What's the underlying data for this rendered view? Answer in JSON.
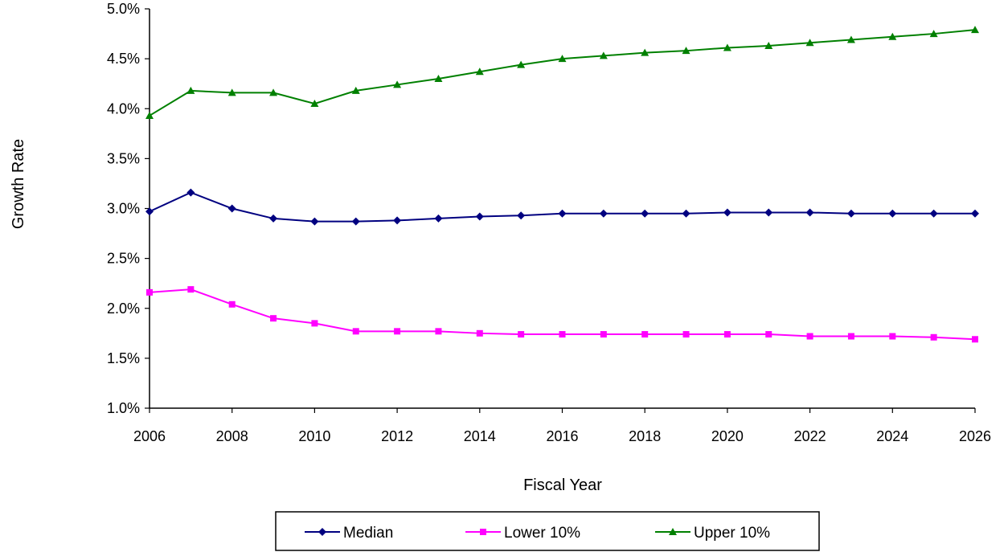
{
  "chart_data": {
    "type": "line",
    "title": "",
    "xlabel": "Fiscal Year",
    "ylabel": "Growth Rate",
    "xlim": [
      2006,
      2026
    ],
    "ylim": [
      1.0,
      5.0
    ],
    "x_ticks": [
      2006,
      2008,
      2010,
      2012,
      2014,
      2016,
      2018,
      2020,
      2022,
      2024,
      2026
    ],
    "y_ticks": [
      1.0,
      1.5,
      2.0,
      2.5,
      3.0,
      3.5,
      4.0,
      4.5,
      5.0
    ],
    "x_tick_labels": [
      "2006",
      "2008",
      "2010",
      "2012",
      "2014",
      "2016",
      "2018",
      "2020",
      "2022",
      "2024",
      "2026"
    ],
    "y_tick_labels": [
      "1.0%",
      "1.5%",
      "2.0%",
      "2.5%",
      "3.0%",
      "3.5%",
      "4.0%",
      "4.5%",
      "5.0%"
    ],
    "grid": false,
    "legend_position": "bottom",
    "x": [
      2006,
      2007,
      2008,
      2009,
      2010,
      2011,
      2012,
      2013,
      2014,
      2015,
      2016,
      2017,
      2018,
      2019,
      2020,
      2021,
      2022,
      2023,
      2024,
      2025,
      2026
    ],
    "series": [
      {
        "name": "Median",
        "color": "#000080",
        "marker": "diamond",
        "values": [
          2.97,
          3.16,
          3.0,
          2.9,
          2.87,
          2.87,
          2.88,
          2.9,
          2.92,
          2.93,
          2.95,
          2.95,
          2.95,
          2.95,
          2.96,
          2.96,
          2.96,
          2.95,
          2.95,
          2.95,
          2.95
        ]
      },
      {
        "name": "Lower 10%",
        "color": "#ff00ff",
        "marker": "square",
        "values": [
          2.16,
          2.19,
          2.04,
          1.9,
          1.85,
          1.77,
          1.77,
          1.77,
          1.75,
          1.74,
          1.74,
          1.74,
          1.74,
          1.74,
          1.74,
          1.74,
          1.72,
          1.72,
          1.72,
          1.71,
          1.69
        ]
      },
      {
        "name": "Upper 10%",
        "color": "#008000",
        "marker": "triangle",
        "values": [
          3.93,
          4.18,
          4.16,
          4.16,
          4.05,
          4.18,
          4.24,
          4.3,
          4.37,
          4.44,
          4.5,
          4.53,
          4.56,
          4.58,
          4.61,
          4.63,
          4.66,
          4.69,
          4.72,
          4.75,
          4.79
        ]
      }
    ]
  }
}
